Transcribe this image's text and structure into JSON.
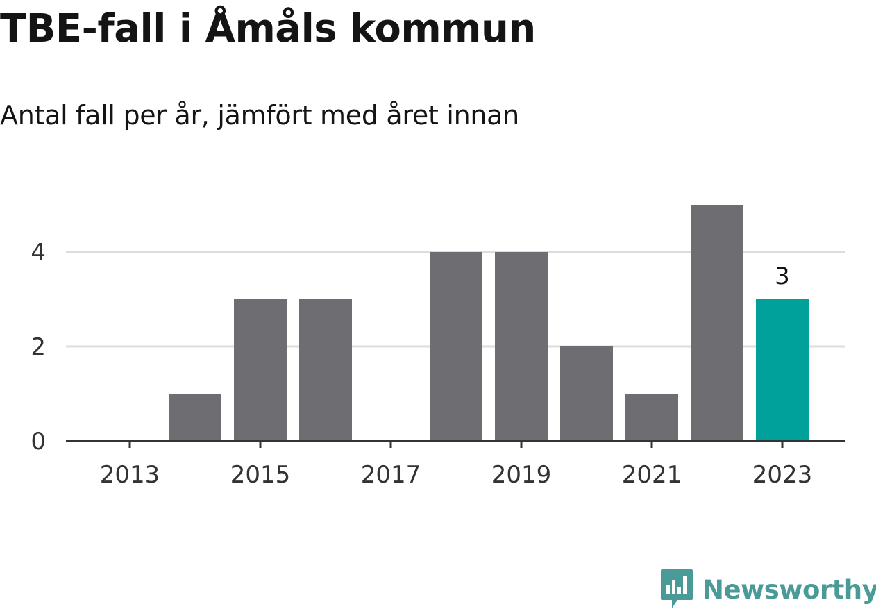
{
  "title": "TBE-fall i Åmåls kommun",
  "subtitle": "Antal fall per år, jämfört med året innan",
  "brand": {
    "name": "Newsworthy",
    "color": "#4a9b98",
    "icon": "bar-chart-speech-bubble-icon"
  },
  "colors": {
    "bar": "#6e6d72",
    "highlight": "#00a19a",
    "grid": "#dddddd",
    "axis": "#333333",
    "tick_text": "#333333"
  },
  "chart_data": {
    "type": "bar",
    "x": [
      2013,
      2014,
      2015,
      2016,
      2017,
      2018,
      2019,
      2020,
      2021,
      2022,
      2023
    ],
    "values": [
      0,
      1,
      3,
      3,
      0,
      4,
      4,
      2,
      1,
      5,
      3
    ],
    "highlight_index": 10,
    "value_label": "3",
    "xticks": [
      "2013",
      "2015",
      "2017",
      "2019",
      "2021",
      "2023"
    ],
    "yticks": [
      "0",
      "2",
      "4"
    ],
    "ylim": [
      0,
      5
    ],
    "grid": true,
    "legend": false
  }
}
